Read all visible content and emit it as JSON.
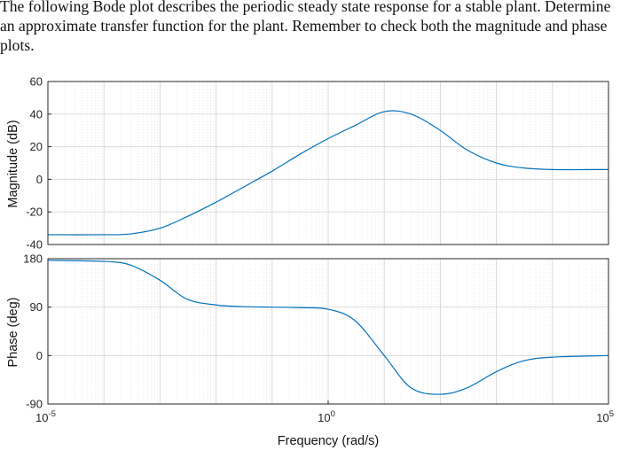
{
  "question": {
    "text": "The following Bode plot describes the periodic steady state response for a stable plant. Determine an approximate transfer function for the plant. Remember to check both the magnitude and phase plots."
  },
  "chart_data": [
    {
      "type": "line",
      "panel": "magnitude",
      "xscale": "log",
      "xlim": [
        1e-05,
        100000.0
      ],
      "ylim": [
        -40,
        60
      ],
      "yticks": [
        -40,
        -20,
        0,
        20,
        40,
        60
      ],
      "ylabel": "Magnitude (dB)",
      "grid": true,
      "color": "#0072BD",
      "series": [
        {
          "x": [
            1e-05,
            0.0001,
            0.0003,
            0.001,
            0.003,
            0.01,
            0.03,
            0.1,
            0.3,
            1,
            3,
            10,
            30,
            100,
            300,
            1000,
            3000,
            10000,
            100000
          ],
          "y": [
            -34,
            -34,
            -33.5,
            -30,
            -23,
            -14,
            -5,
            5,
            15,
            25,
            33,
            41.5,
            40,
            30,
            18,
            10,
            7,
            6,
            6
          ]
        }
      ]
    },
    {
      "type": "line",
      "panel": "phase",
      "xscale": "log",
      "xlim": [
        1e-05,
        100000.0
      ],
      "ylim": [
        -90,
        180
      ],
      "yticks": [
        -90,
        0,
        90,
        180
      ],
      "ylabel": "Phase (deg)",
      "xlabel": "Frequency  (rad/s)",
      "xticks": [
        {
          "value": 1e-05,
          "base": "10",
          "exp": "-5"
        },
        {
          "value": 1,
          "base": "10",
          "exp": "0"
        },
        {
          "value": 100000.0,
          "base": "10",
          "exp": "5"
        }
      ],
      "grid": true,
      "color": "#0072BD",
      "series": [
        {
          "x": [
            1e-05,
            0.0001,
            0.0003,
            0.001,
            0.003,
            0.01,
            0.03,
            0.1,
            0.3,
            1,
            3,
            10,
            30,
            100,
            300,
            1000,
            3000,
            10000,
            100000
          ],
          "y": [
            177,
            175,
            168,
            140,
            105,
            94,
            91,
            90,
            89,
            86,
            65,
            0,
            -60,
            -72,
            -60,
            -30,
            -10,
            -3,
            0
          ]
        }
      ]
    }
  ]
}
